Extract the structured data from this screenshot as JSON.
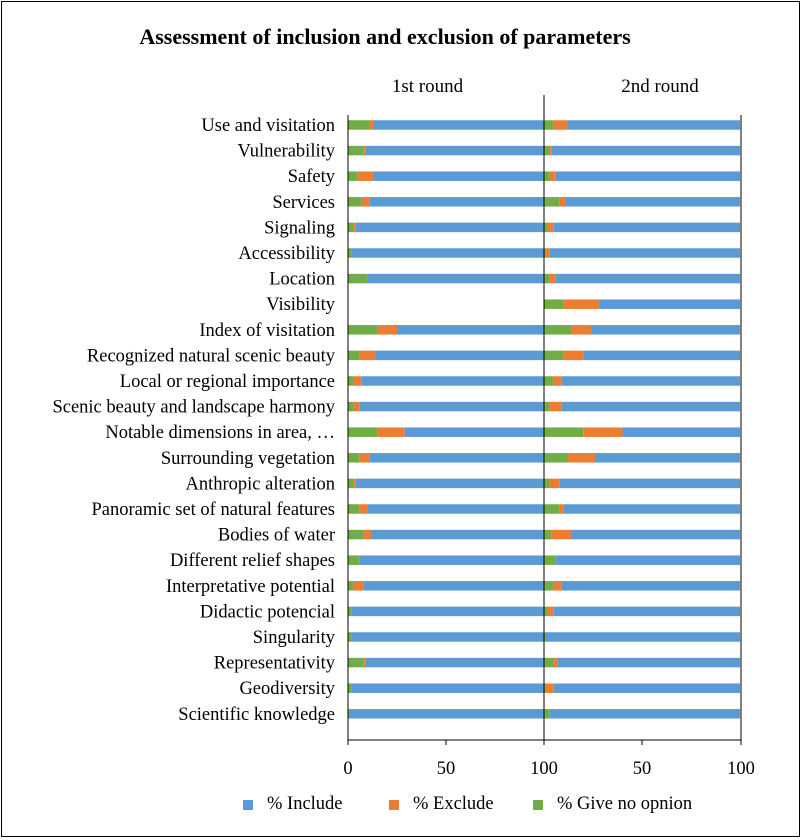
{
  "chart_data": {
    "type": "bar",
    "orientation": "horizontal",
    "stacked": true,
    "title": "Assessment of inclusion and exclusion of parameters",
    "panels": [
      "1st round",
      "2nd round"
    ],
    "xlim": [
      0,
      100
    ],
    "xticks": [
      "0",
      "50",
      "100",
      "50",
      "100"
    ],
    "categories": [
      "Use and visitation",
      "Vulnerability",
      "Safety",
      "Services",
      "Signaling",
      "Accessibility",
      "Location",
      "Visibility",
      "Index of visitation",
      "Recognized natural scenic beauty",
      "Local or regional importance",
      "Scenic beauty and landscape harmony",
      "Notable dimensions in area, …",
      "Surrounding vegetation",
      "Anthropic alteration",
      "Panoramic set of natural features",
      "Bodies of water",
      "Different relief shapes",
      "Interpretative potential",
      "Didactic potencial",
      "Singularity",
      "Representativity",
      "Geodiversity",
      "Scientific knowledge"
    ],
    "series": [
      {
        "name": "% Give no opnion",
        "color": "#70ad47",
        "round1": [
          11,
          8,
          5,
          7,
          3,
          2,
          10,
          0,
          15,
          6,
          3,
          3,
          15,
          6,
          3,
          6,
          8,
          6,
          3,
          2,
          2,
          8,
          2,
          1
        ],
        "round2": [
          5,
          3,
          3,
          8,
          2,
          1,
          3,
          10,
          14,
          10,
          5,
          3,
          20,
          12,
          3,
          8,
          4,
          6,
          5,
          2,
          1,
          5,
          1,
          3
        ]
      },
      {
        "name": "% Exclude",
        "color": "#ed7d31",
        "round1": [
          2,
          1,
          8,
          4,
          1,
          0,
          0,
          0,
          10,
          8,
          4,
          3,
          14,
          5,
          1,
          4,
          4,
          0,
          5,
          0,
          0,
          1,
          0,
          0
        ],
        "round2": [
          7,
          1,
          3,
          3,
          3,
          2,
          3,
          18,
          10,
          10,
          4,
          6,
          20,
          14,
          5,
          2,
          10,
          0,
          4,
          3,
          0,
          2,
          4,
          0
        ]
      },
      {
        "name": "% Include",
        "color": "#5b9bd5",
        "round1": [
          87,
          91,
          87,
          89,
          96,
          98,
          90,
          0,
          75,
          86,
          93,
          94,
          71,
          89,
          96,
          90,
          88,
          94,
          92,
          98,
          98,
          91,
          98,
          99
        ],
        "round2": [
          88,
          96,
          94,
          89,
          95,
          97,
          94,
          72,
          76,
          80,
          91,
          91,
          60,
          74,
          92,
          90,
          86,
          94,
          91,
          95,
          99,
          93,
          95,
          97
        ]
      }
    ],
    "legend_order": [
      "% Include",
      "% Exclude",
      "% Give no opnion"
    ],
    "legend_position": "bottom"
  }
}
